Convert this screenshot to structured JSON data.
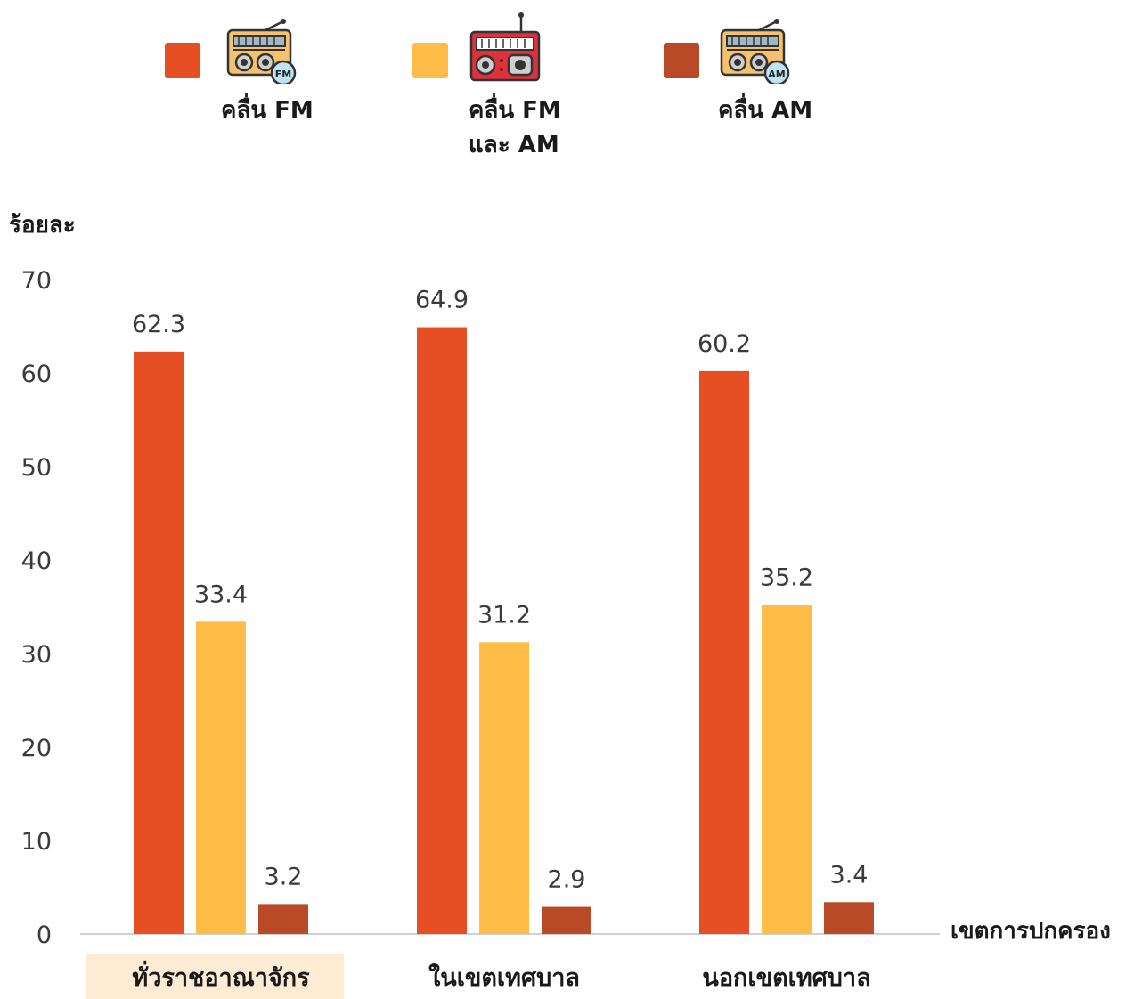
{
  "chart_data": {
    "type": "bar",
    "categories": [
      "ทั่วราชอาณาจักร",
      "ในเขตเทศบาล",
      "นอกเขตเทศบาล"
    ],
    "series": [
      {
        "name": "คลื่น FM",
        "values": [
          62.3,
          64.9,
          60.2
        ],
        "color": "#e64e23"
      },
      {
        "name": "คลื่น FM และ AM",
        "values": [
          33.4,
          31.2,
          35.2
        ],
        "color": "#ffbc47"
      },
      {
        "name": "คลื่น AM",
        "values": [
          3.2,
          2.9,
          3.4
        ],
        "color": "#b84a28"
      }
    ],
    "data_labels": {
      "values": [
        [
          "62.3",
          "64.9",
          "60.2"
        ],
        [
          "33.4",
          "31.2",
          "35.2"
        ],
        [
          "3.2",
          "2.9",
          "3.4"
        ]
      ]
    },
    "ylabel": "ร้อยละ",
    "xlabel": "เขตการปกครอง",
    "ylim": [
      0,
      70
    ],
    "yticks": [
      "0",
      "10",
      "20",
      "30",
      "40",
      "50",
      "60",
      "70"
    ],
    "grid": false,
    "legend_position": "top",
    "highlighted_category": "ทั่วราชอาณาจักร",
    "highlight_color": "#fdebd3"
  },
  "legend": {
    "fm_label": "คลื่น FM",
    "fmam_label_line1": "คลื่น FM",
    "fmam_label_line2": "และ AM",
    "am_label": "คลื่น AM",
    "fm_icon": "radio-fm-icon",
    "fmam_icon": "radio-boombox-icon",
    "am_icon": "radio-am-icon",
    "fm_badge": "FM",
    "am_badge": "AM"
  }
}
